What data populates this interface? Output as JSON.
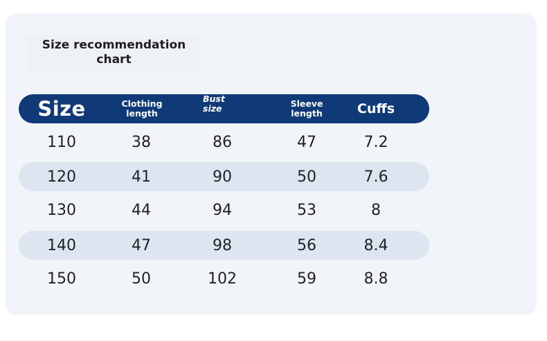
{
  "title": "Size recommendation chart",
  "columns": {
    "size": "Size",
    "clothing_length": [
      "Clothing",
      "length"
    ],
    "bust_size": [
      "Bust",
      "size"
    ],
    "sleeve_length": [
      "Sleeve",
      "length"
    ],
    "cuffs": "Cuffs"
  },
  "rows": [
    {
      "size": "110",
      "clothing_length": "38",
      "bust_size": "86",
      "sleeve_length": "47",
      "cuffs": "7.2"
    },
    {
      "size": "120",
      "clothing_length": "41",
      "bust_size": "90",
      "sleeve_length": "50",
      "cuffs": "7.6"
    },
    {
      "size": "130",
      "clothing_length": "44",
      "bust_size": "94",
      "sleeve_length": "53",
      "cuffs": "8"
    },
    {
      "size": "140",
      "clothing_length": "47",
      "bust_size": "98",
      "sleeve_length": "56",
      "cuffs": "8.4"
    },
    {
      "size": "150",
      "clothing_length": "50",
      "bust_size": "102",
      "sleeve_length": "59",
      "cuffs": "8.8"
    }
  ],
  "colors": {
    "header_background": "#0f3a77",
    "stripe_background": "#dde5f1",
    "card_background": "#f1f4f9"
  }
}
